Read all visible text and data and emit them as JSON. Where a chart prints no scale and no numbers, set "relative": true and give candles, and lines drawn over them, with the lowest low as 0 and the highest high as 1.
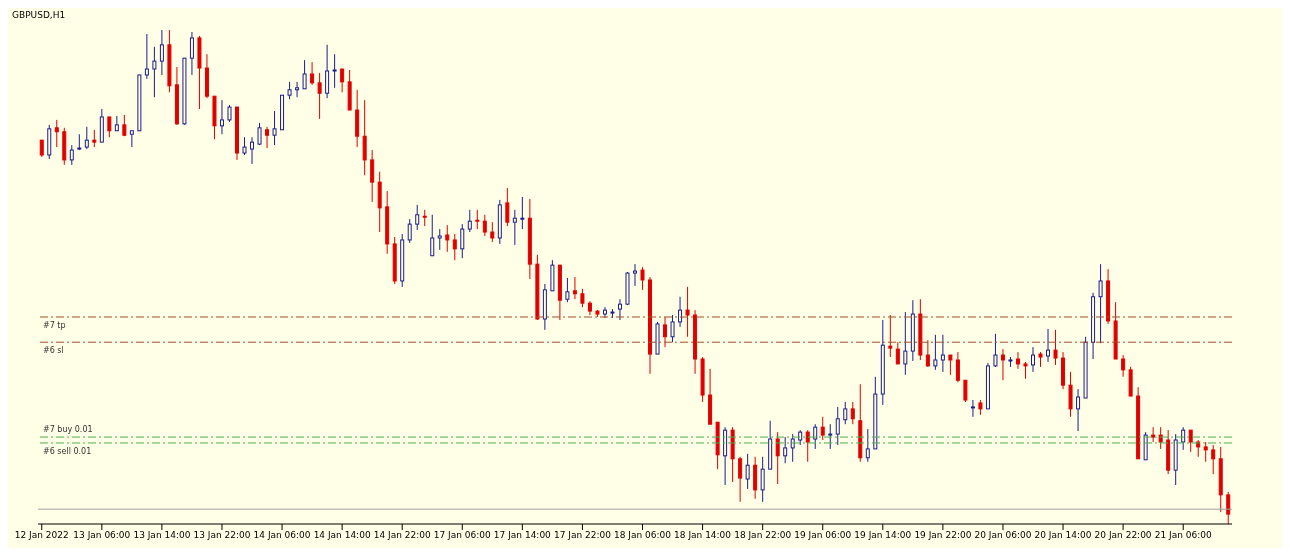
{
  "chart_data": {
    "type": "candlestick",
    "title": "GBPUSD,H1",
    "relative": true,
    "categories": [
      "12 Jan 2022",
      null,
      null,
      null,
      null,
      null,
      null,
      null,
      "13 Jan 06:00",
      null,
      null,
      null,
      null,
      null,
      null,
      null,
      "13 Jan 14:00",
      null,
      null,
      null,
      null,
      null,
      null,
      null,
      "13 Jan 22:00",
      null,
      null,
      null,
      null,
      null,
      null,
      null,
      "14 Jan 06:00",
      null,
      null,
      null,
      null,
      null,
      null,
      null,
      "14 Jan 14:00",
      null,
      null,
      null,
      null,
      null,
      null,
      null,
      "14 Jan 22:00",
      null,
      null,
      null,
      null,
      null,
      null,
      null,
      "17 Jan 06:00",
      null,
      null,
      null,
      null,
      null,
      null,
      null,
      "17 Jan 14:00",
      null,
      null,
      null,
      null,
      null,
      null,
      null,
      "17 Jan 22:00",
      null,
      null,
      null,
      null,
      null,
      null,
      null,
      "18 Jan 06:00",
      null,
      null,
      null,
      null,
      null,
      null,
      null,
      "18 Jan 14:00",
      null,
      null,
      null,
      null,
      null,
      null,
      null,
      "18 Jan 22:00",
      null,
      null,
      null,
      null,
      null,
      null,
      null,
      "19 Jan 06:00",
      null,
      null,
      null,
      null,
      null,
      null,
      null,
      "19 Jan 14:00",
      null,
      null,
      null,
      null,
      null,
      null,
      null,
      "19 Jan 22:00",
      null,
      null,
      null,
      null,
      null,
      null,
      null,
      "20 Jan 06:00",
      null,
      null,
      null,
      null,
      null,
      null,
      null,
      "20 Jan 14:00",
      null,
      null,
      null,
      null,
      null,
      null,
      null,
      "20 Jan 22:00",
      null,
      null,
      null,
      null,
      null,
      null,
      null,
      "21 Jan 06:00",
      null,
      null,
      null,
      null,
      null,
      null
    ],
    "ohlc": [
      [
        0.777,
        0.777,
        0.743,
        0.747
      ],
      [
        0.747,
        0.808,
        0.739,
        0.8
      ],
      [
        0.802,
        0.818,
        0.763,
        0.794
      ],
      [
        0.794,
        0.802,
        0.727,
        0.737
      ],
      [
        0.737,
        0.767,
        0.727,
        0.757
      ],
      [
        0.759,
        0.789,
        0.757,
        0.761
      ],
      [
        0.763,
        0.804,
        0.759,
        0.777
      ],
      [
        0.777,
        0.798,
        0.763,
        0.773
      ],
      [
        0.773,
        0.84,
        0.773,
        0.824
      ],
      [
        0.824,
        0.824,
        0.783,
        0.796
      ],
      [
        0.796,
        0.826,
        0.796,
        0.808
      ],
      [
        0.808,
        0.828,
        0.785,
        0.787
      ],
      [
        0.789,
        0.796,
        0.763,
        0.796
      ],
      [
        0.796,
        0.909,
        0.796,
        0.909
      ],
      [
        0.909,
        0.992,
        0.901,
        0.921
      ],
      [
        0.921,
        0.966,
        0.864,
        0.937
      ],
      [
        0.937,
        1,
        0.909,
        0.97
      ],
      [
        0.97,
        1,
        0.874,
        0.887
      ],
      [
        0.889,
        0.925,
        0.808,
        0.81
      ],
      [
        0.81,
        0.943,
        0.808,
        0.943
      ],
      [
        0.943,
        0.996,
        0.909,
        0.984
      ],
      [
        0.984,
        0.988,
        0.84,
        0.923
      ],
      [
        0.923,
        0.951,
        0.862,
        0.866
      ],
      [
        0.866,
        0.866,
        0.779,
        0.806
      ],
      [
        0.806,
        0.858,
        0.789,
        0.818
      ],
      [
        0.818,
        0.848,
        0.814,
        0.844
      ],
      [
        0.844,
        0.844,
        0.737,
        0.751
      ],
      [
        0.751,
        0.783,
        0.747,
        0.763
      ],
      [
        0.759,
        0.783,
        0.729,
        0.773
      ],
      [
        0.769,
        0.812,
        0.767,
        0.802
      ],
      [
        0.798,
        0.804,
        0.761,
        0.787
      ],
      [
        0.787,
        0.836,
        0.767,
        0.8
      ],
      [
        0.798,
        0.868,
        0.798,
        0.868
      ],
      [
        0.868,
        0.895,
        0.86,
        0.879
      ],
      [
        0.879,
        0.895,
        0.864,
        0.883
      ],
      [
        0.881,
        0.939,
        0.881,
        0.911
      ],
      [
        0.911,
        0.935,
        0.889,
        0.893
      ],
      [
        0.893,
        0.913,
        0.82,
        0.872
      ],
      [
        0.872,
        0.97,
        0.862,
        0.917
      ],
      [
        0.917,
        0.951,
        0.883,
        0.919
      ],
      [
        0.921,
        0.921,
        0.874,
        0.895
      ],
      [
        0.895,
        0.919,
        0.838,
        0.838
      ],
      [
        0.838,
        0.879,
        0.763,
        0.785
      ],
      [
        0.785,
        0.858,
        0.706,
        0.737
      ],
      [
        0.737,
        0.757,
        0.652,
        0.692
      ],
      [
        0.692,
        0.713,
        0.591,
        0.64
      ],
      [
        0.642,
        0.674,
        0.547,
        0.567
      ],
      [
        0.567,
        0.581,
        0.486,
        0.492
      ],
      [
        0.492,
        0.587,
        0.48,
        0.575
      ],
      [
        0.575,
        0.617,
        0.569,
        0.607
      ],
      [
        0.607,
        0.646,
        0.595,
        0.626
      ],
      [
        0.623,
        0.636,
        0.603,
        0.621
      ],
      [
        0.543,
        0.626,
        0.543,
        0.579
      ],
      [
        0.579,
        0.597,
        0.555,
        0.583
      ],
      [
        0.585,
        0.605,
        0.551,
        0.575
      ],
      [
        0.575,
        0.587,
        0.534,
        0.557
      ],
      [
        0.557,
        0.607,
        0.538,
        0.597
      ],
      [
        0.597,
        0.636,
        0.591,
        0.613
      ],
      [
        0.615,
        0.636,
        0.597,
        0.613
      ],
      [
        0.613,
        0.626,
        0.583,
        0.591
      ],
      [
        0.591,
        0.611,
        0.571,
        0.579
      ],
      [
        0.579,
        0.656,
        0.567,
        0.646
      ],
      [
        0.65,
        0.68,
        0.603,
        0.611
      ],
      [
        0.611,
        0.636,
        0.565,
        0.619
      ],
      [
        0.619,
        0.662,
        0.597,
        0.619
      ],
      [
        0.619,
        0.658,
        0.496,
        0.526
      ],
      [
        0.526,
        0.545,
        0.413,
        0.415
      ],
      [
        0.415,
        0.486,
        0.393,
        0.474
      ],
      [
        0.472,
        0.534,
        0.472,
        0.524
      ],
      [
        0.524,
        0.524,
        0.413,
        0.453
      ],
      [
        0.455,
        0.498,
        0.449,
        0.47
      ],
      [
        0.472,
        0.5,
        0.455,
        0.466
      ],
      [
        0.466,
        0.476,
        0.439,
        0.447
      ],
      [
        0.447,
        0.451,
        0.423,
        0.431
      ],
      [
        0.431,
        0.433,
        0.419,
        0.425
      ],
      [
        0.425,
        0.439,
        0.417,
        0.433
      ],
      [
        0.427,
        0.435,
        0.417,
        0.429
      ],
      [
        0.435,
        0.455,
        0.413,
        0.445
      ],
      [
        0.445,
        0.51,
        0.443,
        0.508
      ],
      [
        0.508,
        0.526,
        0.482,
        0.512
      ],
      [
        0.514,
        0.52,
        0.474,
        0.494
      ],
      [
        0.494,
        0.5,
        0.304,
        0.344
      ],
      [
        0.344,
        0.409,
        0.344,
        0.405
      ],
      [
        0.403,
        0.419,
        0.358,
        0.379
      ],
      [
        0.379,
        0.423,
        0.368,
        0.409
      ],
      [
        0.409,
        0.46,
        0.399,
        0.433
      ],
      [
        0.433,
        0.48,
        0.379,
        0.423
      ],
      [
        0.423,
        0.433,
        0.304,
        0.334
      ],
      [
        0.334,
        0.338,
        0.247,
        0.261
      ],
      [
        0.261,
        0.314,
        0.202,
        0.202
      ],
      [
        0.206,
        0.206,
        0.111,
        0.14
      ],
      [
        0.138,
        0.196,
        0.079,
        0.19
      ],
      [
        0.19,
        0.196,
        0.085,
        0.132
      ],
      [
        0.132,
        0.136,
        0.045,
        0.093
      ],
      [
        0.091,
        0.142,
        0.071,
        0.119
      ],
      [
        0.119,
        0.136,
        0.051,
        0.069
      ],
      [
        0.069,
        0.136,
        0.045,
        0.111
      ],
      [
        0.111,
        0.209,
        0.111,
        0.172
      ],
      [
        0.172,
        0.186,
        0.081,
        0.138
      ],
      [
        0.138,
        0.176,
        0.123,
        0.154
      ],
      [
        0.154,
        0.182,
        0.126,
        0.172
      ],
      [
        0.17,
        0.19,
        0.16,
        0.186
      ],
      [
        0.186,
        0.19,
        0.126,
        0.166
      ],
      [
        0.172,
        0.202,
        0.152,
        0.196
      ],
      [
        0.196,
        0.217,
        0.17,
        0.18
      ],
      [
        0.18,
        0.202,
        0.152,
        0.182
      ],
      [
        0.182,
        0.237,
        0.16,
        0.213
      ],
      [
        0.211,
        0.247,
        0.202,
        0.233
      ],
      [
        0.233,
        0.247,
        0.202,
        0.213
      ],
      [
        0.209,
        0.283,
        0.126,
        0.134
      ],
      [
        0.134,
        0.192,
        0.126,
        0.152
      ],
      [
        0.152,
        0.298,
        0.152,
        0.263
      ],
      [
        0.263,
        0.413,
        0.241,
        0.362
      ],
      [
        0.36,
        0.423,
        0.338,
        0.356
      ],
      [
        0.354,
        0.368,
        0.324,
        0.324
      ],
      [
        0.324,
        0.429,
        0.302,
        0.35
      ],
      [
        0.35,
        0.453,
        0.33,
        0.425
      ],
      [
        0.425,
        0.455,
        0.332,
        0.342
      ],
      [
        0.342,
        0.372,
        0.318,
        0.32
      ],
      [
        0.32,
        0.383,
        0.312,
        0.332
      ],
      [
        0.332,
        0.383,
        0.308,
        0.342
      ],
      [
        0.342,
        0.342,
        0.302,
        0.332
      ],
      [
        0.332,
        0.348,
        0.287,
        0.291
      ],
      [
        0.291,
        0.291,
        0.247,
        0.251
      ],
      [
        0.237,
        0.251,
        0.217,
        0.237
      ],
      [
        0.245,
        0.251,
        0.221,
        0.233
      ],
      [
        0.233,
        0.326,
        0.233,
        0.32
      ],
      [
        0.32,
        0.385,
        0.318,
        0.342
      ],
      [
        0.342,
        0.354,
        0.291,
        0.332
      ],
      [
        0.332,
        0.338,
        0.318,
        0.332
      ],
      [
        0.334,
        0.348,
        0.314,
        0.324
      ],
      [
        0.324,
        0.328,
        0.294,
        0.32
      ],
      [
        0.322,
        0.358,
        0.308,
        0.342
      ],
      [
        0.344,
        0.348,
        0.318,
        0.338
      ],
      [
        0.34,
        0.395,
        0.328,
        0.352
      ],
      [
        0.352,
        0.393,
        0.322,
        0.336
      ],
      [
        0.336,
        0.348,
        0.273,
        0.281
      ],
      [
        0.281,
        0.308,
        0.217,
        0.233
      ],
      [
        0.233,
        0.273,
        0.188,
        0.257
      ],
      [
        0.255,
        0.379,
        0.255,
        0.368
      ],
      [
        0.368,
        0.468,
        0.334,
        0.46
      ],
      [
        0.46,
        0.526,
        0.366,
        0.492
      ],
      [
        0.492,
        0.516,
        0.405,
        0.411
      ],
      [
        0.411,
        0.449,
        0.334,
        0.334
      ],
      [
        0.334,
        0.342,
        0.298,
        0.312
      ],
      [
        0.312,
        0.318,
        0.259,
        0.259
      ],
      [
        0.259,
        0.277,
        0.132,
        0.132
      ],
      [
        0.13,
        0.186,
        0.13,
        0.18
      ],
      [
        0.18,
        0.196,
        0.166,
        0.176
      ],
      [
        0.18,
        0.196,
        0.152,
        0.166
      ],
      [
        0.17,
        0.19,
        0.101,
        0.109
      ],
      [
        0.109,
        0.182,
        0.079,
        0.17
      ],
      [
        0.166,
        0.196,
        0.15,
        0.19
      ],
      [
        0.19,
        0.19,
        0.146,
        0.166
      ],
      [
        0.166,
        0.17,
        0.136,
        0.156
      ],
      [
        0.156,
        0.166,
        0.126,
        0.15
      ],
      [
        0.15,
        0.16,
        0.101,
        0.132
      ],
      [
        0.132,
        0.156,
        0.024,
        0.059
      ],
      [
        0.059,
        0.065,
        0,
        0.02
      ]
    ],
    "ref_lines": [
      {
        "axis": "y",
        "value": 0.419,
        "label": "#7 tp",
        "color": "#a0522d",
        "line_style": "dashed"
      },
      {
        "axis": "y",
        "value": 0.368,
        "label": "#6 sl",
        "color": "#a0522d",
        "line_style": "dashed"
      },
      {
        "axis": "y",
        "value": 0.176,
        "label": "#7 buy 0.01",
        "color": "#4caf50",
        "line_style": "dashed"
      },
      {
        "axis": "y",
        "value": 0.164,
        "label": "#6 sell 0.01",
        "color": "#4caf50",
        "line_style": "dashed"
      },
      {
        "axis": "y",
        "value": 0.03,
        "color": "#a0a0a0",
        "line_style": "solid"
      }
    ]
  }
}
